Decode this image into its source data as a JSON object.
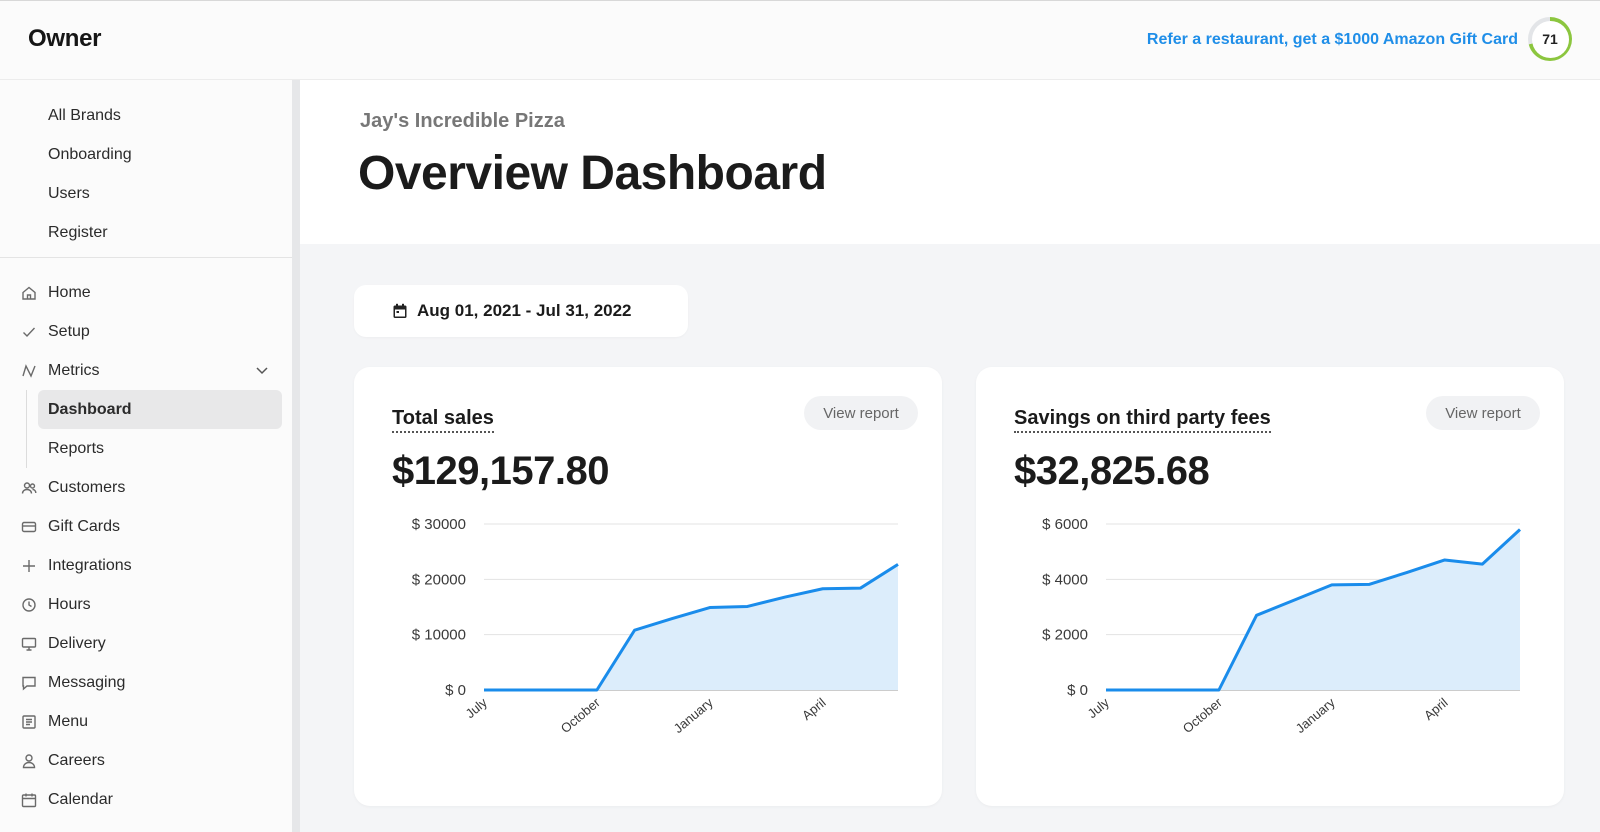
{
  "app": {
    "logo": "Owner",
    "referral_text": "Refer a restaurant, get a $1000 Amazon Gift Card",
    "score": "71"
  },
  "sidebar": {
    "brand_items": [
      {
        "label": "All Brands"
      },
      {
        "label": "Onboarding"
      },
      {
        "label": "Users"
      },
      {
        "label": "Register"
      }
    ],
    "nav_items": [
      {
        "label": "Home",
        "icon": "home-icon"
      },
      {
        "label": "Setup",
        "icon": "check-icon"
      },
      {
        "label": "Metrics",
        "icon": "metrics-icon",
        "expanded": true,
        "children": [
          {
            "label": "Dashboard",
            "active": true
          },
          {
            "label": "Reports"
          }
        ]
      },
      {
        "label": "Customers",
        "icon": "customers-icon"
      },
      {
        "label": "Gift Cards",
        "icon": "gift-card-icon"
      },
      {
        "label": "Integrations",
        "icon": "plus-icon"
      },
      {
        "label": "Hours",
        "icon": "clock-icon"
      },
      {
        "label": "Delivery",
        "icon": "monitor-icon"
      },
      {
        "label": "Messaging",
        "icon": "message-icon"
      },
      {
        "label": "Menu",
        "icon": "menu-icon"
      },
      {
        "label": "Careers",
        "icon": "user-icon"
      },
      {
        "label": "Calendar",
        "icon": "calendar-icon"
      }
    ]
  },
  "header": {
    "brand_name": "Jay's Incredible Pizza",
    "title": "Overview Dashboard"
  },
  "date_range": "Aug 01, 2021 - Jul 31, 2022",
  "cards": [
    {
      "title": "Total sales",
      "value": "$129,157.80",
      "button": "View report"
    },
    {
      "title": "Savings on third party fees",
      "value": "$32,825.68",
      "button": "View report"
    }
  ],
  "chart_data": [
    {
      "type": "area",
      "title": "Total sales",
      "x_tick_labels": [
        "July",
        "October",
        "January",
        "April"
      ],
      "x": [
        0,
        1,
        2,
        3,
        4,
        5,
        6,
        7,
        8,
        9,
        10,
        11
      ],
      "y_tick_labels": [
        "$ 0",
        "$ 10000",
        "$ 20000",
        "$ 30000"
      ],
      "y_ticks": [
        0,
        10000,
        20000,
        30000
      ],
      "ylim": [
        0,
        30000
      ],
      "series": [
        {
          "values": [
            0,
            0,
            0,
            0,
            10800,
            12900,
            14900,
            15100,
            16800,
            18300,
            18400,
            22700
          ]
        }
      ],
      "color": "#1a8ceb",
      "fill": "#dcedfb",
      "grid": true
    },
    {
      "type": "area",
      "title": "Savings on third party fees",
      "x_tick_labels": [
        "July",
        "October",
        "January",
        "April"
      ],
      "x": [
        0,
        1,
        2,
        3,
        4,
        5,
        6,
        7,
        8,
        9,
        10,
        11
      ],
      "y_tick_labels": [
        "$ 0",
        "$ 2000",
        "$ 4000",
        "$ 6000"
      ],
      "y_ticks": [
        0,
        2000,
        4000,
        6000
      ],
      "ylim": [
        0,
        6000
      ],
      "series": [
        {
          "values": [
            0,
            0,
            0,
            0,
            2700,
            3250,
            3800,
            3820,
            4250,
            4700,
            4550,
            5800
          ]
        }
      ],
      "color": "#1a8ceb",
      "fill": "#dcedfb",
      "grid": true
    }
  ]
}
